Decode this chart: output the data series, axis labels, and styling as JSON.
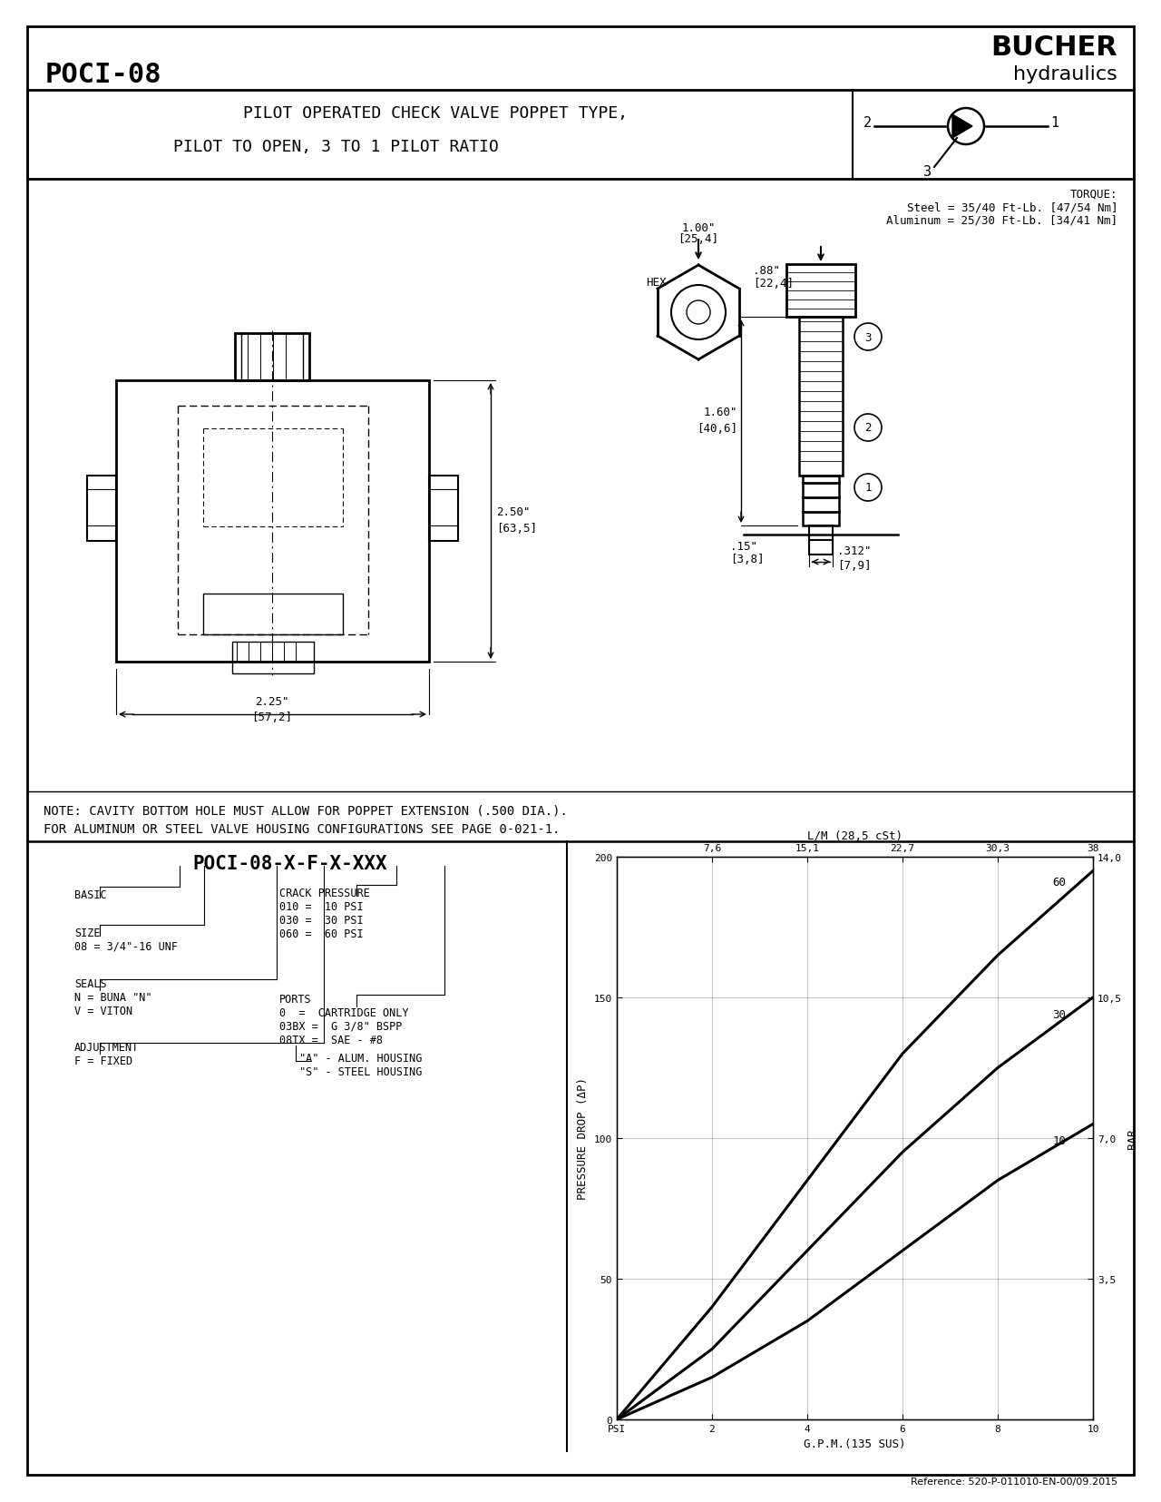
{
  "title_product": "POCI-08",
  "brand": "BUCHER",
  "brand_sub": "hydraulics",
  "valve_title_line1": "PILOT OPERATED CHECK VALVE POPPET TYPE,",
  "valve_title_line2": "PILOT TO OPEN, 3 TO 1 PILOT RATIO",
  "torque_line1": "TORQUE:",
  "torque_line2": "Steel = 35/40 Ft-Lb. [47/54 Nm]",
  "torque_line3": "Aluminum = 25/30 Ft-Lb. [34/41 Nm]",
  "note_line1": "NOTE: CAVITY BOTTOM HOLE MUST ALLOW FOR POPPET EXTENSION (.500 DIA.).",
  "note_line2": "FOR ALUMINUM OR STEEL VALVE HOUSING CONFIGURATIONS SEE PAGE 0-021-1.",
  "model_code": "POCI-08-X-F-X-XXX",
  "basic_label": "BASIC",
  "size_label": "SIZE",
  "size_value": "08 = 3/4\"-16 UNF",
  "seals_label": "SEALS",
  "seals_n": "N = BUNA \"N\"",
  "seals_v": "V = VITON",
  "adj_label": "ADJUSTMENT",
  "adj_value": "F = FIXED",
  "crack_label": "CRACK PRESSURE",
  "crack_010": "010 =  10 PSI",
  "crack_030": "030 =  30 PSI",
  "crack_060": "060 =  60 PSI",
  "ports_label": "PORTS",
  "ports_0": "0  =  CARTRIDGE ONLY",
  "ports_03bx": "03BX =  G 3/8\" BSPP",
  "ports_08tx": "08TX =  SAE - #8",
  "ports_a": "\"A\" - ALUM. HOUSING",
  "ports_s": "\"S\" - STEEL HOUSING",
  "circle_labels": [
    "3",
    "2",
    "1"
  ],
  "graph_title": "L/M (28,5 cSt)",
  "graph_xlabel": "G.P.M.(135 SUS)",
  "graph_ylabel": "PRESSURE DROP (ΔP)",
  "graph_ylim": [
    0,
    200
  ],
  "graph_xlim": [
    0,
    10
  ],
  "graph_yticks_left": [
    0,
    50,
    100,
    150,
    200
  ],
  "graph_ytick_labels_right": [
    "",
    "3,5",
    "7,0",
    "10,5",
    "14,0"
  ],
  "graph_xtick_labels_bottom": [
    "PSI",
    "2",
    "4",
    "6",
    "8",
    "10"
  ],
  "graph_xtick_labels_top": [
    "7,6",
    "15,1",
    "22,7",
    "30,3",
    "38"
  ],
  "curve_60_x": [
    0,
    2,
    4,
    6,
    8,
    10
  ],
  "curve_60_y": [
    0,
    40,
    85,
    130,
    165,
    195
  ],
  "curve_30_x": [
    0,
    2,
    4,
    6,
    8,
    10
  ],
  "curve_30_y": [
    0,
    25,
    60,
    95,
    125,
    150
  ],
  "curve_10_x": [
    0,
    2,
    4,
    6,
    8,
    10
  ],
  "curve_10_y": [
    0,
    15,
    35,
    60,
    85,
    105
  ],
  "curve_label_60": "60",
  "curve_label_30": "30",
  "curve_label_10": "10",
  "reference": "Reference: 520-P-011010-EN-00/09.2015",
  "bg_color": "#ffffff",
  "border_color": "#000000"
}
